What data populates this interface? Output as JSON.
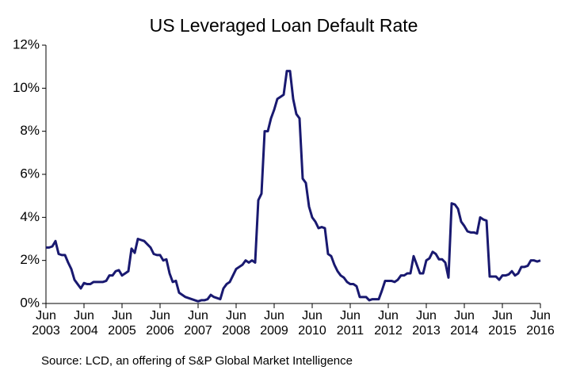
{
  "chart_data": {
    "type": "line",
    "title": "US Leveraged Loan Default Rate",
    "source": "Source: LCD, an offering of S&P Global Market Intelligence",
    "x": [
      "2003-06",
      "2003-07",
      "2003-08",
      "2003-09",
      "2003-10",
      "2003-11",
      "2003-12",
      "2004-01",
      "2004-02",
      "2004-03",
      "2004-04",
      "2004-05",
      "2004-06",
      "2004-07",
      "2004-08",
      "2004-09",
      "2004-10",
      "2004-11",
      "2004-12",
      "2005-01",
      "2005-02",
      "2005-03",
      "2005-04",
      "2005-05",
      "2005-06",
      "2005-07",
      "2005-08",
      "2005-09",
      "2005-10",
      "2005-11",
      "2005-12",
      "2006-01",
      "2006-02",
      "2006-03",
      "2006-04",
      "2006-05",
      "2006-06",
      "2006-07",
      "2006-08",
      "2006-09",
      "2006-10",
      "2006-11",
      "2006-12",
      "2007-01",
      "2007-02",
      "2007-03",
      "2007-04",
      "2007-05",
      "2007-06",
      "2007-07",
      "2007-08",
      "2007-09",
      "2007-10",
      "2007-11",
      "2007-12",
      "2008-01",
      "2008-02",
      "2008-03",
      "2008-04",
      "2008-05",
      "2008-06",
      "2008-07",
      "2008-08",
      "2008-09",
      "2008-10",
      "2008-11",
      "2008-12",
      "2009-01",
      "2009-02",
      "2009-03",
      "2009-04",
      "2009-05",
      "2009-06",
      "2009-07",
      "2009-08",
      "2009-09",
      "2009-10",
      "2009-11",
      "2009-12",
      "2010-01",
      "2010-02",
      "2010-03",
      "2010-04",
      "2010-05",
      "2010-06",
      "2010-07",
      "2010-08",
      "2010-09",
      "2010-10",
      "2010-11",
      "2010-12",
      "2011-01",
      "2011-02",
      "2011-03",
      "2011-04",
      "2011-05",
      "2011-06",
      "2011-07",
      "2011-08",
      "2011-09",
      "2011-10",
      "2011-11",
      "2011-12",
      "2012-01",
      "2012-02",
      "2012-03",
      "2012-04",
      "2012-05",
      "2012-06",
      "2012-07",
      "2012-08",
      "2012-09",
      "2012-10",
      "2012-11",
      "2012-12",
      "2013-01",
      "2013-02",
      "2013-03",
      "2013-04",
      "2013-05",
      "2013-06",
      "2013-07",
      "2013-08",
      "2013-09",
      "2013-10",
      "2013-11",
      "2013-12",
      "2014-01",
      "2014-02",
      "2014-03",
      "2014-04",
      "2014-05",
      "2014-06",
      "2014-07",
      "2014-08",
      "2014-09",
      "2014-10",
      "2014-11",
      "2014-12",
      "2015-01",
      "2015-02",
      "2015-03",
      "2015-04",
      "2015-05",
      "2015-06",
      "2015-07",
      "2015-08",
      "2015-09",
      "2015-10",
      "2015-11",
      "2015-12",
      "2016-01",
      "2016-02",
      "2016-03",
      "2016-04",
      "2016-05",
      "2016-06"
    ],
    "series": [
      {
        "name": "Default rate",
        "color": "#191970",
        "values": [
          2.6,
          2.6,
          2.65,
          2.9,
          2.3,
          2.25,
          2.25,
          1.9,
          1.6,
          1.1,
          0.9,
          0.7,
          0.95,
          0.9,
          0.9,
          1.0,
          1.0,
          1.0,
          1.0,
          1.05,
          1.3,
          1.3,
          1.5,
          1.55,
          1.3,
          1.4,
          1.5,
          2.55,
          2.35,
          3.0,
          2.95,
          2.9,
          2.75,
          2.6,
          2.3,
          2.25,
          2.25,
          2.0,
          2.05,
          1.4,
          1.0,
          1.05,
          0.5,
          0.4,
          0.3,
          0.25,
          0.2,
          0.15,
          0.1,
          0.15,
          0.15,
          0.2,
          0.4,
          0.3,
          0.25,
          0.2,
          0.7,
          0.9,
          1.0,
          1.3,
          1.6,
          1.7,
          1.8,
          2.0,
          1.9,
          2.0,
          1.9,
          4.8,
          5.1,
          8.0,
          8.0,
          8.6,
          9.0,
          9.5,
          9.6,
          9.7,
          10.8,
          10.8,
          9.5,
          8.8,
          8.6,
          5.8,
          5.6,
          4.5,
          4.0,
          3.8,
          3.5,
          3.55,
          3.5,
          2.3,
          2.2,
          1.8,
          1.5,
          1.3,
          1.2,
          1.0,
          0.9,
          0.9,
          0.8,
          0.3,
          0.3,
          0.3,
          0.15,
          0.2,
          0.2,
          0.2,
          0.6,
          1.05,
          1.05,
          1.05,
          1.0,
          1.1,
          1.3,
          1.3,
          1.4,
          1.4,
          2.2,
          1.8,
          1.4,
          1.4,
          2.0,
          2.1,
          2.4,
          2.3,
          2.05,
          2.05,
          1.9,
          1.2,
          4.65,
          4.6,
          4.4,
          3.8,
          3.6,
          3.35,
          3.3,
          3.3,
          3.25,
          4.0,
          3.9,
          3.85,
          1.25,
          1.25,
          1.25,
          1.1,
          1.3,
          1.3,
          1.35,
          1.5,
          1.3,
          1.4,
          1.7,
          1.7,
          1.75,
          2.0,
          2.0,
          1.95,
          2.0
        ]
      }
    ],
    "xlim": [
      "2003-06",
      "2016-06"
    ],
    "xticks": [
      {
        "value": "2003-06",
        "label": "Jun 2003"
      },
      {
        "value": "2004-06",
        "label": "Jun 2004"
      },
      {
        "value": "2005-06",
        "label": "Jun 2005"
      },
      {
        "value": "2006-06",
        "label": "Jun 2006"
      },
      {
        "value": "2007-06",
        "label": "Jun 2007"
      },
      {
        "value": "2008-06",
        "label": "Jun 2008"
      },
      {
        "value": "2009-06",
        "label": "Jun 2009"
      },
      {
        "value": "2010-06",
        "label": "Jun 2010"
      },
      {
        "value": "2011-06",
        "label": "Jun 2011"
      },
      {
        "value": "2012-06",
        "label": "Jun 2012"
      },
      {
        "value": "2013-06",
        "label": "Jun 2013"
      },
      {
        "value": "2014-06",
        "label": "Jun 2014"
      },
      {
        "value": "2015-06",
        "label": "Jun 2015"
      },
      {
        "value": "2016-06",
        "label": "Jun 2016"
      }
    ],
    "ylim": [
      0,
      12
    ],
    "yticks": [
      {
        "value": 0,
        "label": "0%"
      },
      {
        "value": 2,
        "label": "2%"
      },
      {
        "value": 4,
        "label": "4%"
      },
      {
        "value": 6,
        "label": "6%"
      },
      {
        "value": 8,
        "label": "8%"
      },
      {
        "value": 10,
        "label": "10%"
      },
      {
        "value": 12,
        "label": "12%"
      }
    ],
    "grid": false
  }
}
